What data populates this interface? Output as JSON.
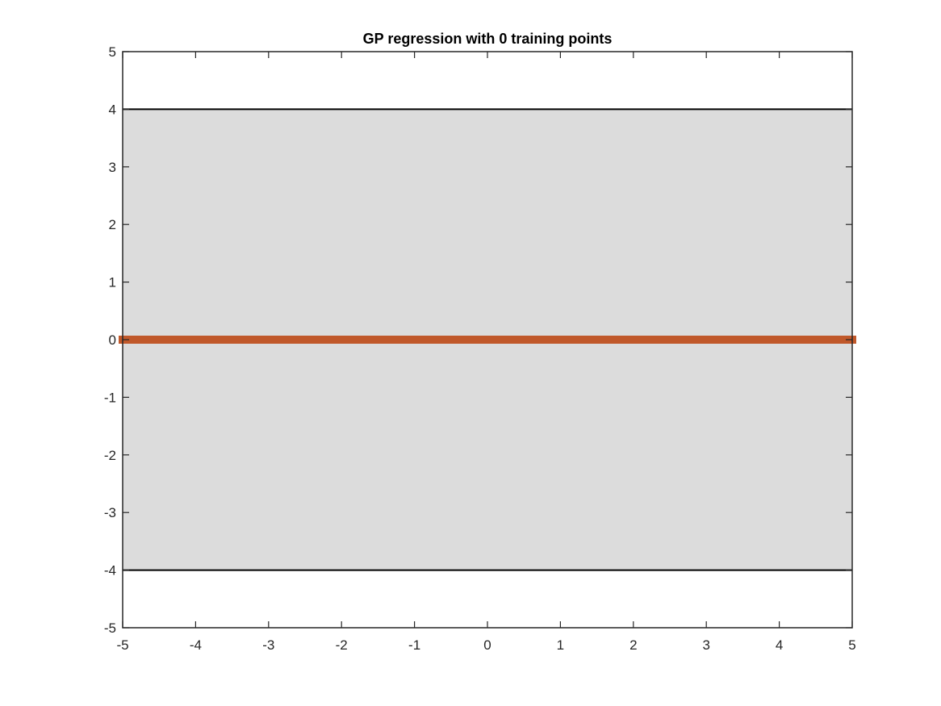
{
  "chart_data": {
    "type": "area",
    "title": "GP regression with 0 training points",
    "xlabel": "",
    "ylabel": "",
    "xlim": [
      -5,
      5
    ],
    "ylim": [
      -5,
      5
    ],
    "xticks": [
      -5,
      -4,
      -3,
      -2,
      -1,
      0,
      1,
      2,
      3,
      4,
      5
    ],
    "yticks": [
      -5,
      -4,
      -3,
      -2,
      -1,
      0,
      1,
      2,
      3,
      4,
      5
    ],
    "grid": false,
    "series": [
      {
        "kind": "band",
        "x": [
          -5,
          5
        ],
        "lower": [
          -4,
          -4
        ],
        "upper": [
          4,
          4
        ],
        "color": "#dcdcdc",
        "edge_color": "#000000"
      },
      {
        "kind": "line",
        "x": [
          -5,
          5
        ],
        "y": [
          0,
          0
        ],
        "color": "#c0582a"
      }
    ]
  }
}
